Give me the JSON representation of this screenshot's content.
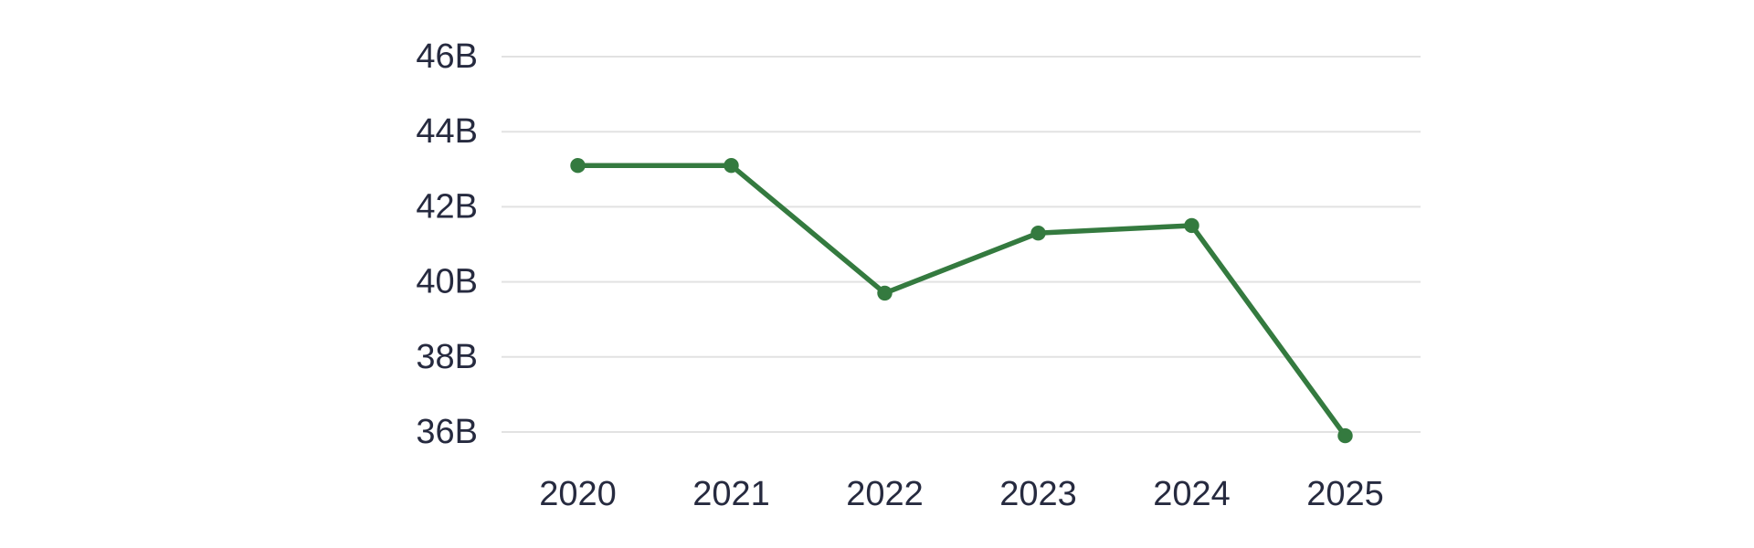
{
  "page": {
    "background_color": "#ffffff"
  },
  "chart_data": {
    "type": "line",
    "title": "",
    "xlabel": "",
    "ylabel": "",
    "categories": [
      "2020",
      "2021",
      "2022",
      "2023",
      "2024",
      "2025"
    ],
    "values": [
      43.1,
      43.1,
      39.7,
      41.3,
      41.5,
      35.9
    ],
    "value_unit": "B",
    "y_ticks": [
      46,
      44,
      42,
      40,
      38,
      36
    ],
    "y_tick_labels": [
      "46B",
      "44B",
      "42B",
      "40B",
      "38B",
      "36B"
    ],
    "ylim": [
      36,
      46
    ],
    "grid": "horizontal",
    "legend_position": "none",
    "marker": "circle",
    "line_color": "#347A3F",
    "marker_color": "#347A3F",
    "grid_color": "#E2E2E2",
    "tick_text_color": "#262A3F"
  }
}
